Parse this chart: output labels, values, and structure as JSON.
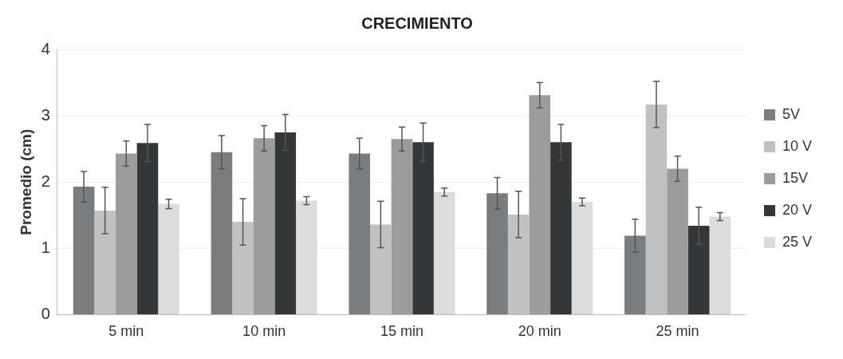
{
  "chart_data": {
    "type": "bar",
    "title": "CRECIMIENTO",
    "ylabel": "Promedio (cm)",
    "categories": [
      "5 min",
      "10 min",
      "15 min",
      "20 min",
      "25 min"
    ],
    "series": [
      {
        "name": "5V",
        "color": "#7a7d80",
        "values": [
          1.93,
          2.45,
          2.43,
          1.83,
          1.19
        ],
        "errors": [
          0.23,
          0.25,
          0.23,
          0.24,
          0.25
        ]
      },
      {
        "name": "10 V",
        "color": "#c0c1c3",
        "values": [
          1.57,
          1.4,
          1.36,
          1.51,
          3.17
        ],
        "errors": [
          0.35,
          0.35,
          0.35,
          0.35,
          0.35
        ]
      },
      {
        "name": "15V",
        "color": "#9a9c9e",
        "values": [
          2.43,
          2.66,
          2.65,
          3.31,
          2.2
        ],
        "errors": [
          0.19,
          0.19,
          0.18,
          0.19,
          0.19
        ]
      },
      {
        "name": "20 V",
        "color": "#33373a",
        "values": [
          2.59,
          2.75,
          2.6,
          2.6,
          1.34
        ],
        "errors": [
          0.28,
          0.27,
          0.29,
          0.27,
          0.28
        ]
      },
      {
        "name": "25 V",
        "color": "#dcdcdc",
        "values": [
          1.67,
          1.72,
          1.85,
          1.7,
          1.48
        ],
        "errors": [
          0.07,
          0.06,
          0.06,
          0.06,
          0.06
        ]
      }
    ],
    "ylim": [
      0,
      4
    ],
    "yticks": [
      0,
      1,
      2,
      3,
      4
    ],
    "grid": "y",
    "legend": "right"
  }
}
